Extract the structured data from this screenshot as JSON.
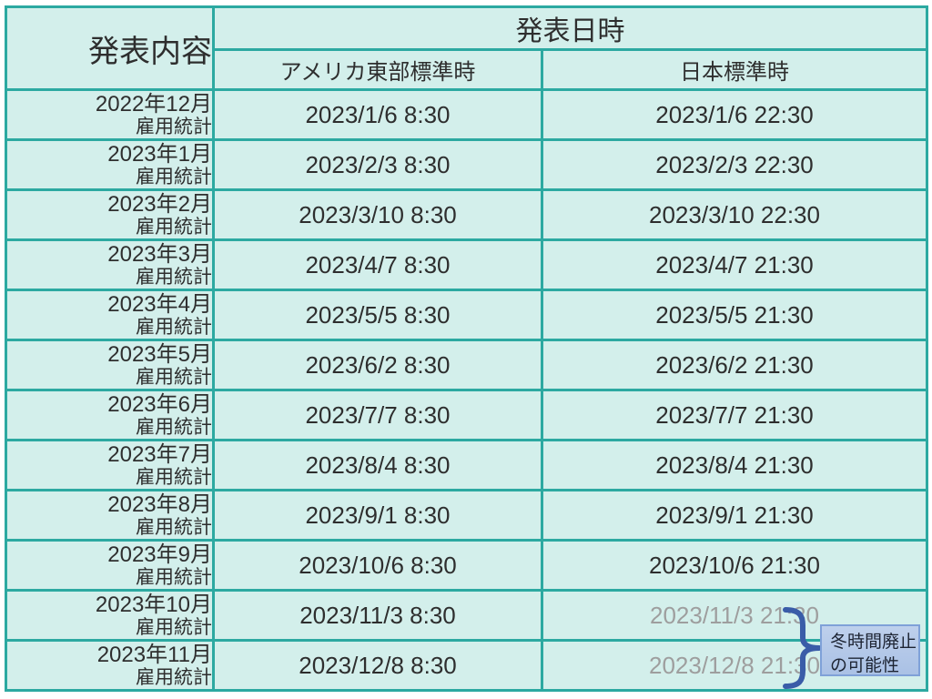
{
  "table": {
    "header": {
      "content_label": "発表内容",
      "datetime_label": "発表日時",
      "subheader_us": "アメリカ東部標準時",
      "subheader_jp": "日本標準時"
    },
    "rows": [
      {
        "label_line1": "2022年12月",
        "label_line2": "雇用統計",
        "us_time": "2023/1/6 8:30",
        "jp_time": "2023/1/6 22:30",
        "jp_muted": false
      },
      {
        "label_line1": "2023年1月",
        "label_line2": "雇用統計",
        "us_time": "2023/2/3 8:30",
        "jp_time": "2023/2/3 22:30",
        "jp_muted": false
      },
      {
        "label_line1": "2023年2月",
        "label_line2": "雇用統計",
        "us_time": "2023/3/10 8:30",
        "jp_time": "2023/3/10 22:30",
        "jp_muted": false
      },
      {
        "label_line1": "2023年3月",
        "label_line2": "雇用統計",
        "us_time": "2023/4/7 8:30",
        "jp_time": "2023/4/7 21:30",
        "jp_muted": false
      },
      {
        "label_line1": "2023年4月",
        "label_line2": "雇用統計",
        "us_time": "2023/5/5 8:30",
        "jp_time": "2023/5/5 21:30",
        "jp_muted": false
      },
      {
        "label_line1": "2023年5月",
        "label_line2": "雇用統計",
        "us_time": "2023/6/2 8:30",
        "jp_time": "2023/6/2 21:30",
        "jp_muted": false
      },
      {
        "label_line1": "2023年6月",
        "label_line2": "雇用統計",
        "us_time": "2023/7/7 8:30",
        "jp_time": "2023/7/7 21:30",
        "jp_muted": false
      },
      {
        "label_line1": "2023年7月",
        "label_line2": "雇用統計",
        "us_time": "2023/8/4 8:30",
        "jp_time": "2023/8/4 21:30",
        "jp_muted": false
      },
      {
        "label_line1": "2023年8月",
        "label_line2": "雇用統計",
        "us_time": "2023/9/1 8:30",
        "jp_time": "2023/9/1 21:30",
        "jp_muted": false
      },
      {
        "label_line1": "2023年9月",
        "label_line2": "雇用統計",
        "us_time": "2023/10/6 8:30",
        "jp_time": "2023/10/6 21:30",
        "jp_muted": false
      },
      {
        "label_line1": "2023年10月",
        "label_line2": "雇用統計",
        "us_time": "2023/11/3 8:30",
        "jp_time": "2023/11/3 21:30",
        "jp_muted": true
      },
      {
        "label_line1": "2023年11月",
        "label_line2": "雇用統計",
        "us_time": "2023/12/8 8:30",
        "jp_time": "2023/12/8 21:30",
        "jp_muted": true
      }
    ]
  },
  "annotation": {
    "line1": "冬時間廃止",
    "line2": "の可能性"
  },
  "colors": {
    "cell_background": "#d3efeb",
    "grid_border": "#2ca9a1",
    "text": "#2e2e2e",
    "muted_text": "#9e9e9e",
    "brace": "#3a5ca8",
    "note_background": "#b4c8e8",
    "note_border": "#7fa1d8"
  },
  "chart_data": {
    "type": "table",
    "column_groups": [
      {
        "label": "発表日時",
        "spans": [
          "アメリカ東部標準時",
          "日本標準時"
        ]
      }
    ],
    "columns": [
      "発表内容",
      "アメリカ東部標準時",
      "日本標準時"
    ],
    "rows": [
      [
        "2022年12月 雇用統計",
        "2023/1/6 8:30",
        "2023/1/6 22:30"
      ],
      [
        "2023年1月 雇用統計",
        "2023/2/3 8:30",
        "2023/2/3 22:30"
      ],
      [
        "2023年2月 雇用統計",
        "2023/3/10 8:30",
        "2023/3/10 22:30"
      ],
      [
        "2023年3月 雇用統計",
        "2023/4/7 8:30",
        "2023/4/7 21:30"
      ],
      [
        "2023年4月 雇用統計",
        "2023/5/5 8:30",
        "2023/5/5 21:30"
      ],
      [
        "2023年5月 雇用統計",
        "2023/6/2 8:30",
        "2023/6/2 21:30"
      ],
      [
        "2023年6月 雇用統計",
        "2023/7/7 8:30",
        "2023/7/7 21:30"
      ],
      [
        "2023年7月 雇用統計",
        "2023/8/4 8:30",
        "2023/8/4 21:30"
      ],
      [
        "2023年8月 雇用統計",
        "2023/9/1 8:30",
        "2023/9/1 21:30"
      ],
      [
        "2023年9月 雇用統計",
        "2023/10/6 8:30",
        "2023/10/6 21:30"
      ],
      [
        "2023年10月 雇用統計",
        "2023/11/3 8:30",
        "2023/11/3 21:30"
      ],
      [
        "2023年11月 雇用統計",
        "2023/12/8 8:30",
        "2023/12/8 21:30"
      ]
    ],
    "annotations": [
      {
        "text": "冬時間廃止の可能性",
        "column": "日本標準時",
        "applies_to_row_indices": [
          10,
          11
        ],
        "style": "grayed-out values with blue brace"
      }
    ]
  }
}
